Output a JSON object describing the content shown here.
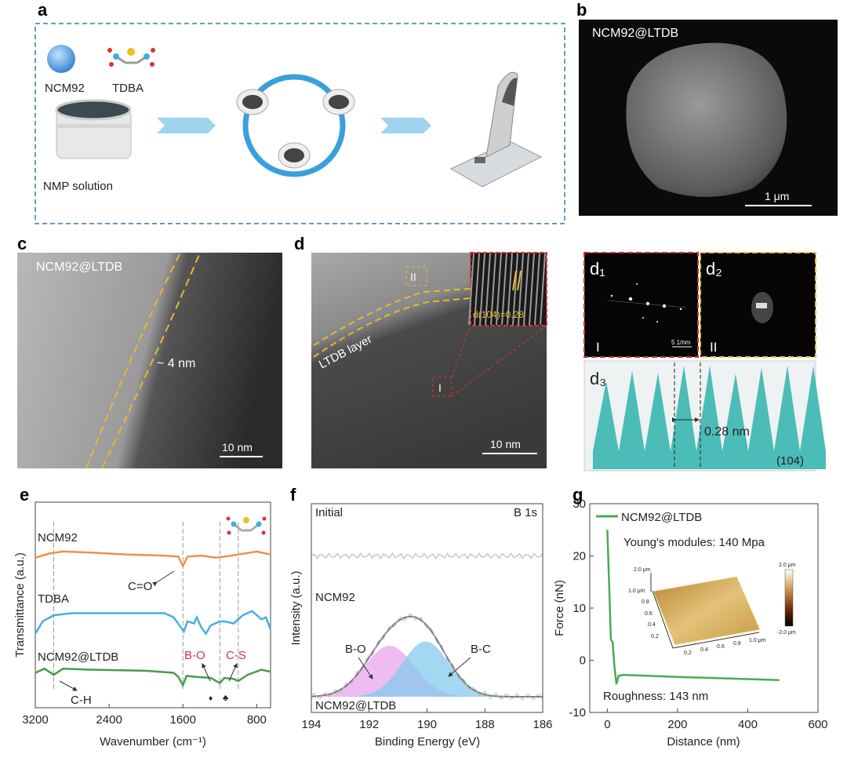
{
  "panels": {
    "a": {
      "label": "a",
      "ncm92": "NCM92",
      "tdba": "TDBA",
      "nmp": "NMP solution"
    },
    "b": {
      "label": "b",
      "sample": "NCM92@LTDB",
      "scale": "1 μm"
    },
    "c": {
      "label": "c",
      "sample": "NCM92@LTDB",
      "thickness": "~ 4 nm",
      "scale": "10 nm"
    },
    "d": {
      "label": "d",
      "layer": "LTDB layer",
      "region1": "I",
      "region2": "II",
      "spacing": "d(104)=0.28",
      "scale": "10 nm"
    },
    "d1": {
      "label": "d₁",
      "region": "I",
      "scale": "5 1/nm"
    },
    "d2": {
      "label": "d₂",
      "region": "II"
    },
    "d3": {
      "label": "d₃",
      "spacing": "0.28 nm",
      "plane": "(104)",
      "peaks": [
        0.85,
        0.95,
        0.93,
        1.0,
        1.0,
        0.92,
        0.98,
        1.0,
        1.0
      ],
      "color": "#4cbcb8"
    },
    "e": {
      "label": "e"
    },
    "f": {
      "label": "f"
    },
    "g": {
      "label": "g"
    }
  },
  "chart_data": [
    {
      "id": "e",
      "type": "line",
      "title": "",
      "xlabel": "Wavenumber (cm⁻¹)",
      "ylabel": "Transmittance (a.u.)",
      "xlim": [
        3200,
        650
      ],
      "ylim": [
        0,
        10
      ],
      "xticks": [
        "3200",
        "2400",
        "1600",
        "800"
      ],
      "xtick_values": [
        3200,
        2400,
        1600,
        800
      ],
      "series": [
        {
          "name": "NCM92",
          "color": "#e8944a",
          "points": [
            [
              3200,
              7.3
            ],
            [
              3050,
              7.5
            ],
            [
              2900,
              7.6
            ],
            [
              2600,
              7.55
            ],
            [
              2200,
              7.45
            ],
            [
              1800,
              7.4
            ],
            [
              1650,
              7.35
            ],
            [
              1600,
              6.9
            ],
            [
              1550,
              7.35
            ],
            [
              1400,
              7.4
            ],
            [
              1250,
              7.3
            ],
            [
              1150,
              7.35
            ],
            [
              1000,
              7.45
            ],
            [
              800,
              7.6
            ],
            [
              650,
              7.45
            ]
          ]
        },
        {
          "name": "TDBA",
          "color": "#4aaee0",
          "points": [
            [
              3200,
              3.6
            ],
            [
              3120,
              4.2
            ],
            [
              3000,
              4.5
            ],
            [
              2800,
              4.6
            ],
            [
              2400,
              4.6
            ],
            [
              1800,
              4.6
            ],
            [
              1700,
              4.4
            ],
            [
              1620,
              3.9
            ],
            [
              1590,
              3.7
            ],
            [
              1550,
              4.2
            ],
            [
              1480,
              4.1
            ],
            [
              1450,
              4.4
            ],
            [
              1400,
              3.9
            ],
            [
              1350,
              3.6
            ],
            [
              1300,
              4.0
            ],
            [
              1200,
              4.2
            ],
            [
              1150,
              4.2
            ],
            [
              1050,
              4.1
            ],
            [
              950,
              4.5
            ],
            [
              850,
              4.7
            ],
            [
              750,
              4.3
            ],
            [
              700,
              4.4
            ],
            [
              650,
              3.8
            ]
          ]
        },
        {
          "name": "NCM92@LTDB",
          "color": "#4a9a4e",
          "points": [
            [
              3200,
              1.7
            ],
            [
              3100,
              1.9
            ],
            [
              3000,
              1.6
            ],
            [
              2900,
              1.9
            ],
            [
              2600,
              1.85
            ],
            [
              2000,
              1.8
            ],
            [
              1700,
              1.7
            ],
            [
              1650,
              1.5
            ],
            [
              1600,
              1.1
            ],
            [
              1560,
              1.55
            ],
            [
              1450,
              1.5
            ],
            [
              1300,
              1.45
            ],
            [
              1200,
              1.2
            ],
            [
              1150,
              1.45
            ],
            [
              1050,
              1.4
            ],
            [
              1000,
              1.3
            ],
            [
              900,
              1.6
            ],
            [
              750,
              1.85
            ],
            [
              650,
              1.75
            ]
          ]
        }
      ],
      "guides": [
        3000,
        1600,
        1200,
        1000
      ],
      "annotations": {
        "c_o": "C=O",
        "b_o": "B-O",
        "c_s": "C-S",
        "c_h": "C-H",
        "diamond": "♦",
        "club": "♣"
      }
    },
    {
      "id": "f",
      "type": "line",
      "title": "B 1s",
      "xlabel": "Binding Energy (eV)",
      "ylabel": "Intensity (a.u.)",
      "xlim": [
        194,
        186
      ],
      "ylim": [
        0,
        10
      ],
      "xticks": [
        "194",
        "192",
        "190",
        "188",
        "186"
      ],
      "xtick_values": [
        194,
        192,
        190,
        188,
        186
      ],
      "series_labels": {
        "initial": "Initial",
        "ncm92": "NCM92",
        "ltdb": "NCM92@LTDB"
      },
      "initial_level": 7.5,
      "baseline": 0.75,
      "peaks": [
        {
          "name": "B-O",
          "center": 191.3,
          "amplitude": 2.45,
          "fwhm": 2.0,
          "color": "#e8a6ee"
        },
        {
          "name": "B-C",
          "center": 190.05,
          "amplitude": 2.65,
          "fwhm": 1.9,
          "color": "#86c9ee"
        }
      ]
    },
    {
      "id": "g",
      "type": "line",
      "title": "",
      "xlabel": "Distance (nm)",
      "ylabel": "Force (nN)",
      "xlim": [
        -50,
        600
      ],
      "ylim": [
        -10,
        30
      ],
      "xticks": [
        "0",
        "200",
        "400",
        "600"
      ],
      "xtick_values": [
        0,
        200,
        400,
        600
      ],
      "yticks": [
        "30",
        "20",
        "10",
        "0",
        "-10"
      ],
      "ytick_values": [
        30,
        20,
        10,
        0,
        -10
      ],
      "legend": "NCM92@LTDB",
      "legend_position": "top-left",
      "series": [
        {
          "name": "NCM92@LTDB",
          "color": "#4caa55",
          "points": [
            [
              0,
              25
            ],
            [
              5,
              15
            ],
            [
              10,
              4
            ],
            [
              15,
              3.5
            ],
            [
              20,
              -1
            ],
            [
              26,
              -4.6
            ],
            [
              32,
              -3
            ],
            [
              45,
              -2.8
            ],
            [
              200,
              -3.2
            ],
            [
              490,
              -3.8
            ]
          ]
        }
      ],
      "youngs": "Young's modules: 140 Mpa",
      "roughness": "Roughness: 143 nm",
      "inset": {
        "z_top": "2.0 μm",
        "y_max": "1.0 μm",
        "y_ticks": [
          "0.8",
          "0.6",
          "0.4",
          "0.2"
        ],
        "x_ticks": [
          "0.2",
          "0.4",
          "0.6",
          "0.8",
          "1.0 μm"
        ],
        "cbar_max": "2.0 μm",
        "cbar_min": "-2.0 μm"
      }
    }
  ]
}
